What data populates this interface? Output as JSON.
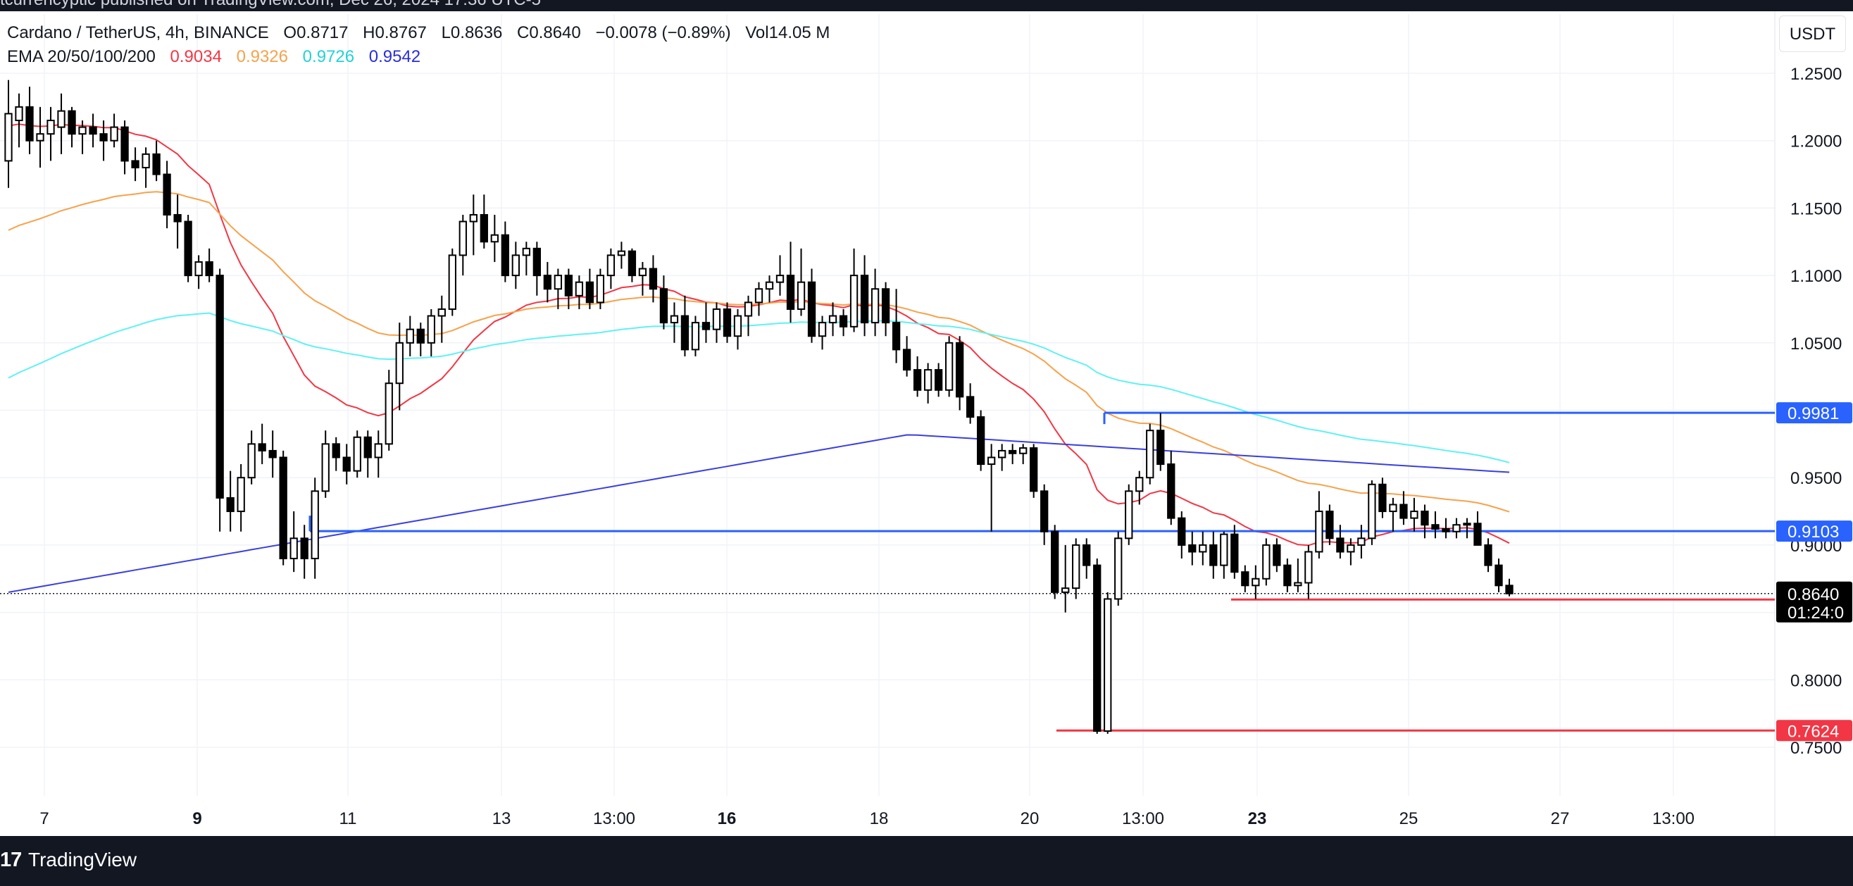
{
  "header": {
    "published_text": "tcurrencyptic published on TradingView.com, Dec 26, 2024 17:36 UTC-5"
  },
  "legend": {
    "symbol": "Cardano / TetherUS, 4h, BINANCE",
    "open": "O0.8717",
    "high": "H0.8767",
    "low": "L0.8636",
    "close": "C0.8640",
    "change": "−0.0078 (−0.89%)",
    "volume_label": "Vol",
    "volume": "14.05 M",
    "ema_label": "EMA 20/50/100/200",
    "ema20": "0.9034",
    "ema50": "0.9326",
    "ema100": "0.9726",
    "ema200": "0.9542"
  },
  "quote_currency": "USDT",
  "footer": {
    "brand": "TradingView",
    "logo_glyph": "17"
  },
  "colors": {
    "ema20": "#f23645",
    "ema50": "#f7a24b",
    "ema100": "#5ff2f0",
    "ema200": "#3b3fe0",
    "support_line": "#f23645",
    "resistance_line": "#2962ff",
    "candle": "#000000",
    "last_price_tag": "#000000"
  },
  "chart_data": {
    "type": "candlestick",
    "title": "Cardano / TetherUS, 4h, BINANCE",
    "x_ticks": [
      "7",
      "9",
      "11",
      "13",
      "13:00",
      "16",
      "18",
      "20",
      "13:00",
      "23",
      "25",
      "27",
      "13:00"
    ],
    "y_ticks": [
      "1.2500",
      "1.2000",
      "1.1500",
      "1.1000",
      "1.0500",
      "0.9500",
      "0.9000",
      "0.8000",
      "0.7500"
    ],
    "ylim": [
      0.7,
      1.28
    ],
    "candles": [
      {
        "o": 1.185,
        "h": 1.245,
        "l": 1.165,
        "c": 1.22
      },
      {
        "o": 1.215,
        "h": 1.235,
        "l": 1.195,
        "c": 1.225
      },
      {
        "o": 1.225,
        "h": 1.24,
        "l": 1.19,
        "c": 1.2
      },
      {
        "o": 1.2,
        "h": 1.225,
        "l": 1.18,
        "c": 1.205
      },
      {
        "o": 1.205,
        "h": 1.225,
        "l": 1.185,
        "c": 1.215
      },
      {
        "o": 1.21,
        "h": 1.235,
        "l": 1.19,
        "c": 1.222
      },
      {
        "o": 1.222,
        "h": 1.225,
        "l": 1.195,
        "c": 1.205
      },
      {
        "o": 1.205,
        "h": 1.215,
        "l": 1.19,
        "c": 1.21
      },
      {
        "o": 1.21,
        "h": 1.22,
        "l": 1.195,
        "c": 1.205
      },
      {
        "o": 1.205,
        "h": 1.215,
        "l": 1.185,
        "c": 1.2
      },
      {
        "o": 1.2,
        "h": 1.22,
        "l": 1.195,
        "c": 1.21
      },
      {
        "o": 1.21,
        "h": 1.215,
        "l": 1.175,
        "c": 1.185
      },
      {
        "o": 1.185,
        "h": 1.195,
        "l": 1.17,
        "c": 1.18
      },
      {
        "o": 1.18,
        "h": 1.195,
        "l": 1.165,
        "c": 1.19
      },
      {
        "o": 1.19,
        "h": 1.2,
        "l": 1.17,
        "c": 1.175
      },
      {
        "o": 1.175,
        "h": 1.185,
        "l": 1.135,
        "c": 1.145
      },
      {
        "o": 1.145,
        "h": 1.16,
        "l": 1.12,
        "c": 1.14
      },
      {
        "o": 1.14,
        "h": 1.145,
        "l": 1.095,
        "c": 1.1
      },
      {
        "o": 1.1,
        "h": 1.115,
        "l": 1.09,
        "c": 1.11
      },
      {
        "o": 1.11,
        "h": 1.12,
        "l": 1.095,
        "c": 1.1
      },
      {
        "o": 1.1,
        "h": 1.105,
        "l": 0.91,
        "c": 0.935
      },
      {
        "o": 0.935,
        "h": 0.955,
        "l": 0.91,
        "c": 0.925
      },
      {
        "o": 0.925,
        "h": 0.96,
        "l": 0.91,
        "c": 0.95
      },
      {
        "o": 0.95,
        "h": 0.985,
        "l": 0.945,
        "c": 0.975
      },
      {
        "o": 0.975,
        "h": 0.99,
        "l": 0.96,
        "c": 0.97
      },
      {
        "o": 0.97,
        "h": 0.985,
        "l": 0.95,
        "c": 0.965
      },
      {
        "o": 0.965,
        "h": 0.97,
        "l": 0.885,
        "c": 0.89
      },
      {
        "o": 0.89,
        "h": 0.925,
        "l": 0.88,
        "c": 0.905
      },
      {
        "o": 0.905,
        "h": 0.915,
        "l": 0.875,
        "c": 0.89
      },
      {
        "o": 0.89,
        "h": 0.95,
        "l": 0.875,
        "c": 0.94
      },
      {
        "o": 0.94,
        "h": 0.985,
        "l": 0.935,
        "c": 0.975
      },
      {
        "o": 0.975,
        "h": 0.98,
        "l": 0.955,
        "c": 0.965
      },
      {
        "o": 0.965,
        "h": 0.975,
        "l": 0.945,
        "c": 0.955
      },
      {
        "o": 0.955,
        "h": 0.985,
        "l": 0.95,
        "c": 0.98
      },
      {
        "o": 0.98,
        "h": 0.985,
        "l": 0.95,
        "c": 0.965
      },
      {
        "o": 0.965,
        "h": 0.985,
        "l": 0.95,
        "c": 0.975
      },
      {
        "o": 0.975,
        "h": 1.03,
        "l": 0.97,
        "c": 1.02
      },
      {
        "o": 1.02,
        "h": 1.065,
        "l": 1.0,
        "c": 1.05
      },
      {
        "o": 1.05,
        "h": 1.07,
        "l": 1.04,
        "c": 1.06
      },
      {
        "o": 1.06,
        "h": 1.065,
        "l": 1.04,
        "c": 1.05
      },
      {
        "o": 1.05,
        "h": 1.075,
        "l": 1.04,
        "c": 1.07
      },
      {
        "o": 1.07,
        "h": 1.085,
        "l": 1.05,
        "c": 1.075
      },
      {
        "o": 1.075,
        "h": 1.12,
        "l": 1.07,
        "c": 1.115
      },
      {
        "o": 1.115,
        "h": 1.145,
        "l": 1.1,
        "c": 1.14
      },
      {
        "o": 1.14,
        "h": 1.16,
        "l": 1.115,
        "c": 1.145
      },
      {
        "o": 1.145,
        "h": 1.16,
        "l": 1.12,
        "c": 1.125
      },
      {
        "o": 1.125,
        "h": 1.145,
        "l": 1.11,
        "c": 1.13
      },
      {
        "o": 1.13,
        "h": 1.14,
        "l": 1.095,
        "c": 1.1
      },
      {
        "o": 1.1,
        "h": 1.125,
        "l": 1.09,
        "c": 1.115
      },
      {
        "o": 1.115,
        "h": 1.125,
        "l": 1.1,
        "c": 1.12
      },
      {
        "o": 1.12,
        "h": 1.125,
        "l": 1.085,
        "c": 1.1
      },
      {
        "o": 1.1,
        "h": 1.11,
        "l": 1.08,
        "c": 1.09
      },
      {
        "o": 1.09,
        "h": 1.105,
        "l": 1.075,
        "c": 1.1
      },
      {
        "o": 1.1,
        "h": 1.105,
        "l": 1.075,
        "c": 1.085
      },
      {
        "o": 1.085,
        "h": 1.1,
        "l": 1.075,
        "c": 1.095
      },
      {
        "o": 1.095,
        "h": 1.105,
        "l": 1.075,
        "c": 1.08
      },
      {
        "o": 1.08,
        "h": 1.105,
        "l": 1.075,
        "c": 1.1
      },
      {
        "o": 1.1,
        "h": 1.12,
        "l": 1.09,
        "c": 1.115
      },
      {
        "o": 1.115,
        "h": 1.125,
        "l": 1.105,
        "c": 1.118
      },
      {
        "o": 1.118,
        "h": 1.12,
        "l": 1.095,
        "c": 1.1
      },
      {
        "o": 1.1,
        "h": 1.11,
        "l": 1.085,
        "c": 1.105
      },
      {
        "o": 1.105,
        "h": 1.115,
        "l": 1.08,
        "c": 1.09
      },
      {
        "o": 1.09,
        "h": 1.1,
        "l": 1.06,
        "c": 1.065
      },
      {
        "o": 1.065,
        "h": 1.08,
        "l": 1.05,
        "c": 1.07
      },
      {
        "o": 1.07,
        "h": 1.085,
        "l": 1.04,
        "c": 1.045
      },
      {
        "o": 1.045,
        "h": 1.07,
        "l": 1.04,
        "c": 1.065
      },
      {
        "o": 1.065,
        "h": 1.08,
        "l": 1.05,
        "c": 1.06
      },
      {
        "o": 1.06,
        "h": 1.08,
        "l": 1.05,
        "c": 1.075
      },
      {
        "o": 1.075,
        "h": 1.08,
        "l": 1.05,
        "c": 1.055
      },
      {
        "o": 1.055,
        "h": 1.075,
        "l": 1.045,
        "c": 1.07
      },
      {
        "o": 1.07,
        "h": 1.085,
        "l": 1.055,
        "c": 1.08
      },
      {
        "o": 1.08,
        "h": 1.095,
        "l": 1.07,
        "c": 1.09
      },
      {
        "o": 1.09,
        "h": 1.1,
        "l": 1.08,
        "c": 1.095
      },
      {
        "o": 1.095,
        "h": 1.115,
        "l": 1.085,
        "c": 1.1
      },
      {
        "o": 1.1,
        "h": 1.125,
        "l": 1.065,
        "c": 1.075
      },
      {
        "o": 1.075,
        "h": 1.12,
        "l": 1.07,
        "c": 1.095
      },
      {
        "o": 1.095,
        "h": 1.105,
        "l": 1.05,
        "c": 1.055
      },
      {
        "o": 1.055,
        "h": 1.07,
        "l": 1.045,
        "c": 1.065
      },
      {
        "o": 1.065,
        "h": 1.08,
        "l": 1.055,
        "c": 1.07
      },
      {
        "o": 1.07,
        "h": 1.075,
        "l": 1.055,
        "c": 1.062
      },
      {
        "o": 1.062,
        "h": 1.12,
        "l": 1.058,
        "c": 1.1
      },
      {
        "o": 1.1,
        "h": 1.115,
        "l": 1.055,
        "c": 1.065
      },
      {
        "o": 1.065,
        "h": 1.105,
        "l": 1.055,
        "c": 1.09
      },
      {
        "o": 1.09,
        "h": 1.095,
        "l": 1.055,
        "c": 1.065
      },
      {
        "o": 1.065,
        "h": 1.09,
        "l": 1.035,
        "c": 1.045
      },
      {
        "o": 1.045,
        "h": 1.055,
        "l": 1.025,
        "c": 1.03
      },
      {
        "o": 1.03,
        "h": 1.04,
        "l": 1.01,
        "c": 1.015
      },
      {
        "o": 1.015,
        "h": 1.035,
        "l": 1.005,
        "c": 1.03
      },
      {
        "o": 1.03,
        "h": 1.035,
        "l": 1.01,
        "c": 1.015
      },
      {
        "o": 1.015,
        "h": 1.055,
        "l": 1.01,
        "c": 1.05
      },
      {
        "o": 1.05,
        "h": 1.055,
        "l": 1.0,
        "c": 1.01
      },
      {
        "o": 1.01,
        "h": 1.02,
        "l": 0.99,
        "c": 0.995
      },
      {
        "o": 0.995,
        "h": 1.0,
        "l": 0.955,
        "c": 0.96
      },
      {
        "o": 0.96,
        "h": 0.975,
        "l": 0.91,
        "c": 0.965
      },
      {
        "o": 0.965,
        "h": 0.975,
        "l": 0.955,
        "c": 0.97
      },
      {
        "o": 0.97,
        "h": 0.975,
        "l": 0.96,
        "c": 0.968
      },
      {
        "o": 0.968,
        "h": 0.975,
        "l": 0.96,
        "c": 0.972
      },
      {
        "o": 0.972,
        "h": 0.975,
        "l": 0.935,
        "c": 0.94
      },
      {
        "o": 0.94,
        "h": 0.945,
        "l": 0.9,
        "c": 0.91
      },
      {
        "o": 0.91,
        "h": 0.915,
        "l": 0.86,
        "c": 0.865
      },
      {
        "o": 0.865,
        "h": 0.9,
        "l": 0.85,
        "c": 0.868
      },
      {
        "o": 0.868,
        "h": 0.905,
        "l": 0.86,
        "c": 0.9
      },
      {
        "o": 0.9,
        "h": 0.905,
        "l": 0.875,
        "c": 0.885
      },
      {
        "o": 0.885,
        "h": 0.89,
        "l": 0.76,
        "c": 0.762
      },
      {
        "o": 0.762,
        "h": 0.865,
        "l": 0.76,
        "c": 0.86
      },
      {
        "o": 0.86,
        "h": 0.91,
        "l": 0.855,
        "c": 0.905
      },
      {
        "o": 0.905,
        "h": 0.945,
        "l": 0.9,
        "c": 0.94
      },
      {
        "o": 0.94,
        "h": 0.955,
        "l": 0.93,
        "c": 0.95
      },
      {
        "o": 0.95,
        "h": 0.99,
        "l": 0.945,
        "c": 0.985
      },
      {
        "o": 0.985,
        "h": 0.998,
        "l": 0.955,
        "c": 0.96
      },
      {
        "o": 0.96,
        "h": 0.97,
        "l": 0.915,
        "c": 0.92
      },
      {
        "o": 0.92,
        "h": 0.925,
        "l": 0.89,
        "c": 0.9
      },
      {
        "o": 0.9,
        "h": 0.91,
        "l": 0.885,
        "c": 0.895
      },
      {
        "o": 0.895,
        "h": 0.91,
        "l": 0.885,
        "c": 0.9
      },
      {
        "o": 0.9,
        "h": 0.91,
        "l": 0.875,
        "c": 0.885
      },
      {
        "o": 0.885,
        "h": 0.91,
        "l": 0.875,
        "c": 0.908
      },
      {
        "o": 0.908,
        "h": 0.915,
        "l": 0.875,
        "c": 0.88
      },
      {
        "o": 0.88,
        "h": 0.885,
        "l": 0.865,
        "c": 0.87
      },
      {
        "o": 0.87,
        "h": 0.885,
        "l": 0.86,
        "c": 0.875
      },
      {
        "o": 0.875,
        "h": 0.905,
        "l": 0.87,
        "c": 0.9
      },
      {
        "o": 0.9,
        "h": 0.905,
        "l": 0.88,
        "c": 0.885
      },
      {
        "o": 0.885,
        "h": 0.89,
        "l": 0.865,
        "c": 0.87
      },
      {
        "o": 0.87,
        "h": 0.89,
        "l": 0.865,
        "c": 0.872
      },
      {
        "o": 0.872,
        "h": 0.9,
        "l": 0.86,
        "c": 0.895
      },
      {
        "o": 0.895,
        "h": 0.94,
        "l": 0.89,
        "c": 0.925
      },
      {
        "o": 0.925,
        "h": 0.93,
        "l": 0.9,
        "c": 0.905
      },
      {
        "o": 0.905,
        "h": 0.915,
        "l": 0.89,
        "c": 0.895
      },
      {
        "o": 0.895,
        "h": 0.905,
        "l": 0.885,
        "c": 0.9
      },
      {
        "o": 0.9,
        "h": 0.915,
        "l": 0.89,
        "c": 0.905
      },
      {
        "o": 0.905,
        "h": 0.948,
        "l": 0.9,
        "c": 0.945
      },
      {
        "o": 0.945,
        "h": 0.95,
        "l": 0.92,
        "c": 0.925
      },
      {
        "o": 0.925,
        "h": 0.935,
        "l": 0.91,
        "c": 0.93
      },
      {
        "o": 0.93,
        "h": 0.94,
        "l": 0.915,
        "c": 0.92
      },
      {
        "o": 0.92,
        "h": 0.935,
        "l": 0.91,
        "c": 0.925
      },
      {
        "o": 0.925,
        "h": 0.93,
        "l": 0.905,
        "c": 0.915
      },
      {
        "o": 0.915,
        "h": 0.925,
        "l": 0.905,
        "c": 0.912
      },
      {
        "o": 0.912,
        "h": 0.92,
        "l": 0.905,
        "c": 0.91
      },
      {
        "o": 0.91,
        "h": 0.92,
        "l": 0.905,
        "c": 0.915
      },
      {
        "o": 0.915,
        "h": 0.92,
        "l": 0.905,
        "c": 0.916
      },
      {
        "o": 0.916,
        "h": 0.925,
        "l": 0.9,
        "c": 0.9
      },
      {
        "o": 0.9,
        "h": 0.905,
        "l": 0.88,
        "c": 0.885
      },
      {
        "o": 0.885,
        "h": 0.89,
        "l": 0.865,
        "c": 0.87
      },
      {
        "o": 0.87,
        "h": 0.875,
        "l": 0.862,
        "c": 0.864
      }
    ],
    "ema": [
      {
        "name": "EMA 20",
        "value": 0.9034
      },
      {
        "name": "EMA 50",
        "value": 0.9326
      },
      {
        "name": "EMA 100",
        "value": 0.9726
      },
      {
        "name": "EMA 200",
        "value": 0.9542
      }
    ],
    "horizontal_levels": [
      {
        "label": "0.9981",
        "value": 0.9981,
        "kind": "resistance"
      },
      {
        "label": "0.9103",
        "value": 0.9103,
        "kind": "resistance"
      },
      {
        "label": "0.8596",
        "value": 0.8596,
        "kind": "support"
      },
      {
        "label": "0.7624",
        "value": 0.7624,
        "kind": "support"
      }
    ],
    "last_price": {
      "label": "0.8640",
      "value": 0.864,
      "countdown": "01:24:0"
    },
    "grid": true
  }
}
